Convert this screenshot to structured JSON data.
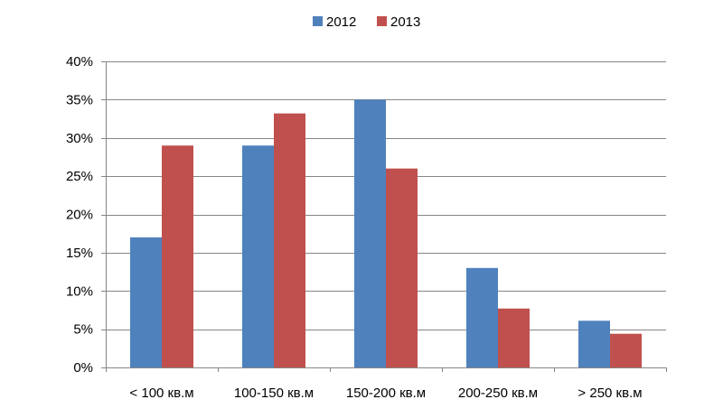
{
  "chart_data": {
    "type": "bar",
    "title": "",
    "xlabel": "",
    "ylabel": "",
    "categories": [
      "< 100 кв.м",
      "100-150 кв.м",
      "150-200 кв.м",
      "200-250 кв.м",
      "> 250 кв.м"
    ],
    "series": [
      {
        "name": "2012",
        "color": "#4F81BD",
        "values": [
          17,
          29,
          35,
          13,
          6.1
        ]
      },
      {
        "name": "2013",
        "color": "#C0504D",
        "values": [
          29,
          33.2,
          26,
          7.7,
          4.4
        ]
      }
    ],
    "ylim": [
      0,
      40
    ],
    "yticks": [
      0,
      5,
      10,
      15,
      20,
      25,
      30,
      35,
      40
    ],
    "ytick_labels": [
      "0%",
      "5%",
      "10%",
      "15%",
      "20%",
      "25%",
      "30%",
      "35%",
      "40%"
    ],
    "grid": true,
    "legend_position": "top-center"
  }
}
